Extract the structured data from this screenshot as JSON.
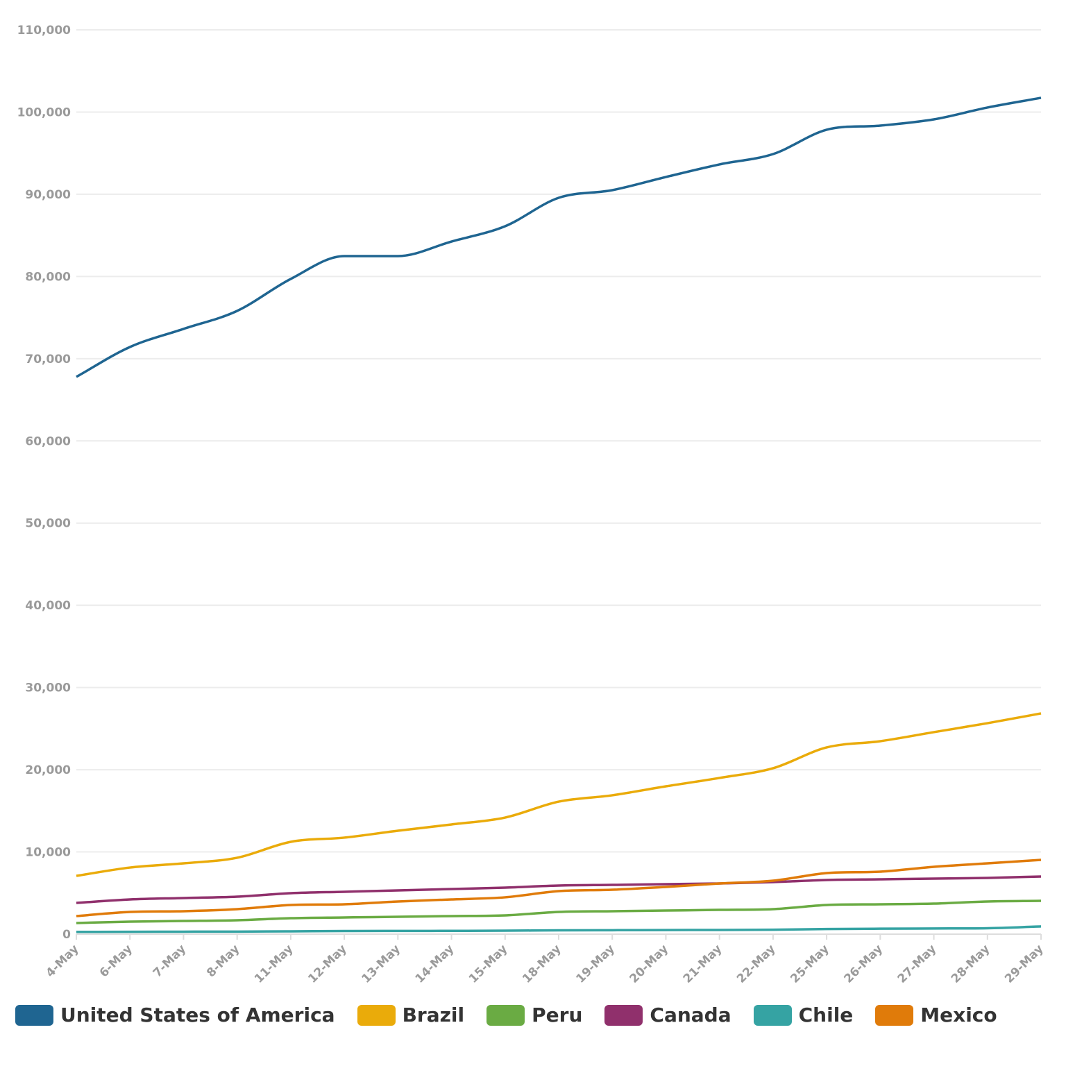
{
  "chart_data": {
    "type": "line",
    "title": "",
    "xlabel": "",
    "ylabel": "",
    "ylim": [
      0,
      110000
    ],
    "yticks": [
      0,
      10000,
      20000,
      30000,
      40000,
      50000,
      60000,
      70000,
      80000,
      90000,
      100000,
      110000
    ],
    "ytick_labels": [
      "0",
      "10,000",
      "20,000",
      "30,000",
      "40,000",
      "50,000",
      "60,000",
      "70,000",
      "80,000",
      "90,000",
      "100,000",
      "110,000"
    ],
    "grid": true,
    "legend_placement": "bottom",
    "categories": [
      "4-May",
      "6-May",
      "7-May",
      "8-May",
      "11-May",
      "12-May",
      "13-May",
      "14-May",
      "15-May",
      "18-May",
      "19-May",
      "20-May",
      "21-May",
      "22-May",
      "25-May",
      "26-May",
      "27-May",
      "28-May",
      "29-May"
    ],
    "series": [
      {
        "name": "United States of America",
        "color": "#1f6591",
        "values": [
          67790,
          71420,
          73620,
          75810,
          79700,
          82480,
          82480,
          84250,
          86110,
          89570,
          90500,
          92100,
          93630,
          94890,
          97850,
          98350,
          99110,
          100550,
          101730
        ]
      },
      {
        "name": "Brazil",
        "color": "#eaab0a",
        "values": [
          7090,
          8100,
          8610,
          9290,
          11230,
          11740,
          12580,
          13340,
          14180,
          16120,
          16890,
          17980,
          19000,
          20180,
          22710,
          23470,
          24570,
          25660,
          26850
        ]
      },
      {
        "name": "Peru",
        "color": "#6aab43",
        "values": [
          1350,
          1520,
          1600,
          1690,
          1940,
          2030,
          2110,
          2200,
          2280,
          2700,
          2790,
          2870,
          2950,
          3040,
          3550,
          3630,
          3710,
          3970,
          4050
        ]
      },
      {
        "name": "Canada",
        "color": "#90306c",
        "values": [
          3800,
          4220,
          4390,
          4560,
          4980,
          5150,
          5320,
          5490,
          5660,
          5910,
          5990,
          6080,
          6160,
          6330,
          6590,
          6670,
          6750,
          6840,
          7010
        ]
      },
      {
        "name": "Chile",
        "color": "#35a3a3",
        "values": [
          270,
          290,
          300,
          310,
          340,
          380,
          390,
          400,
          420,
          460,
          480,
          500,
          510,
          540,
          620,
          660,
          690,
          720,
          940
        ]
      },
      {
        "name": "Mexico",
        "color": "#e07b0a",
        "values": [
          2200,
          2700,
          2790,
          3040,
          3550,
          3630,
          3970,
          4220,
          4480,
          5230,
          5400,
          5740,
          6160,
          6500,
          7430,
          7600,
          8190,
          8610,
          9030
        ]
      }
    ]
  }
}
